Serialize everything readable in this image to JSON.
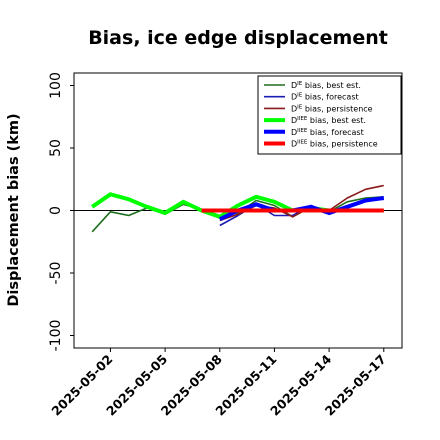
{
  "chart_data": {
    "type": "line",
    "title": "Bias, ice edge displacement",
    "xlabel": "",
    "ylabel": "Displacement bias (km)",
    "x": [
      "2025-05-01",
      "2025-05-02",
      "2025-05-03",
      "2025-05-04",
      "2025-05-05",
      "2025-05-06",
      "2025-05-07",
      "2025-05-08",
      "2025-05-09",
      "2025-05-10",
      "2025-05-11",
      "2025-05-12",
      "2025-05-13",
      "2025-05-14",
      "2025-05-15",
      "2025-05-16",
      "2025-05-17"
    ],
    "xticks": [
      "2025-05-02",
      "2025-05-05",
      "2025-05-08",
      "2025-05-11",
      "2025-05-14",
      "2025-05-17"
    ],
    "highlight_tick": "2025-05-08",
    "highlight_color": "#228b22",
    "ylim": [
      -110,
      110
    ],
    "yticks": [
      -100,
      -50,
      0,
      50,
      100
    ],
    "xlim": [
      "2025-04-30",
      "2025-05-18"
    ],
    "grid": false,
    "legend_placement": "top-right",
    "zero_line": true,
    "series": [
      {
        "name": "D^IE bias, best est.",
        "label_main": "D",
        "label_sup": "IE",
        "label_rest": " bias, best est.",
        "color": "#1e6e1e",
        "width": "thin",
        "values": [
          -17,
          -1,
          -4,
          2,
          -3,
          5,
          1,
          -4,
          -2,
          8,
          4,
          -5,
          3,
          -1,
          7,
          10,
          11
        ]
      },
      {
        "name": "D^IE bias, forecast",
        "label_main": "D",
        "label_sup": "IE",
        "label_rest": " bias, forecast",
        "color": "#1c1cb4",
        "width": "thin",
        "values": [
          null,
          null,
          null,
          null,
          null,
          null,
          null,
          -12,
          -4,
          5,
          -4,
          -4,
          4,
          -3,
          2,
          9,
          9
        ]
      },
      {
        "name": "D^IE bias, persistence",
        "label_main": "D",
        "label_sup": "IE",
        "label_rest": " bias, persistence",
        "color": "#8b1a1a",
        "width": "thin",
        "values": [
          null,
          null,
          null,
          null,
          null,
          null,
          null,
          -8,
          -3,
          4,
          2,
          -5,
          3,
          0,
          10,
          17,
          20
        ]
      },
      {
        "name": "D^IIEE bias, best est.",
        "label_main": "D",
        "label_sup": "IIEE",
        "label_rest": " bias, best est.",
        "color": "#00ff00",
        "width": "thick",
        "values": [
          3,
          13,
          9,
          3,
          -2,
          7,
          0,
          -5,
          4,
          11,
          7,
          0,
          2,
          0,
          0,
          0,
          0
        ]
      },
      {
        "name": "D^IIEE bias, forecast",
        "label_main": "D",
        "label_sup": "IIEE",
        "label_rest": " bias, forecast",
        "color": "#0000ff",
        "width": "thick",
        "values": [
          null,
          null,
          null,
          null,
          null,
          null,
          null,
          -7,
          0,
          5,
          0,
          0,
          3,
          -2,
          3,
          8,
          10
        ]
      },
      {
        "name": "D^IIEE bias, persistence",
        "label_main": "D",
        "label_sup": "IIEE",
        "label_rest": " bias, persistence",
        "color": "#ff0000",
        "width": "thick",
        "values": [
          null,
          null,
          null,
          null,
          null,
          null,
          0,
          0,
          0,
          0,
          0,
          0,
          0,
          0,
          0,
          0,
          0
        ]
      }
    ]
  }
}
